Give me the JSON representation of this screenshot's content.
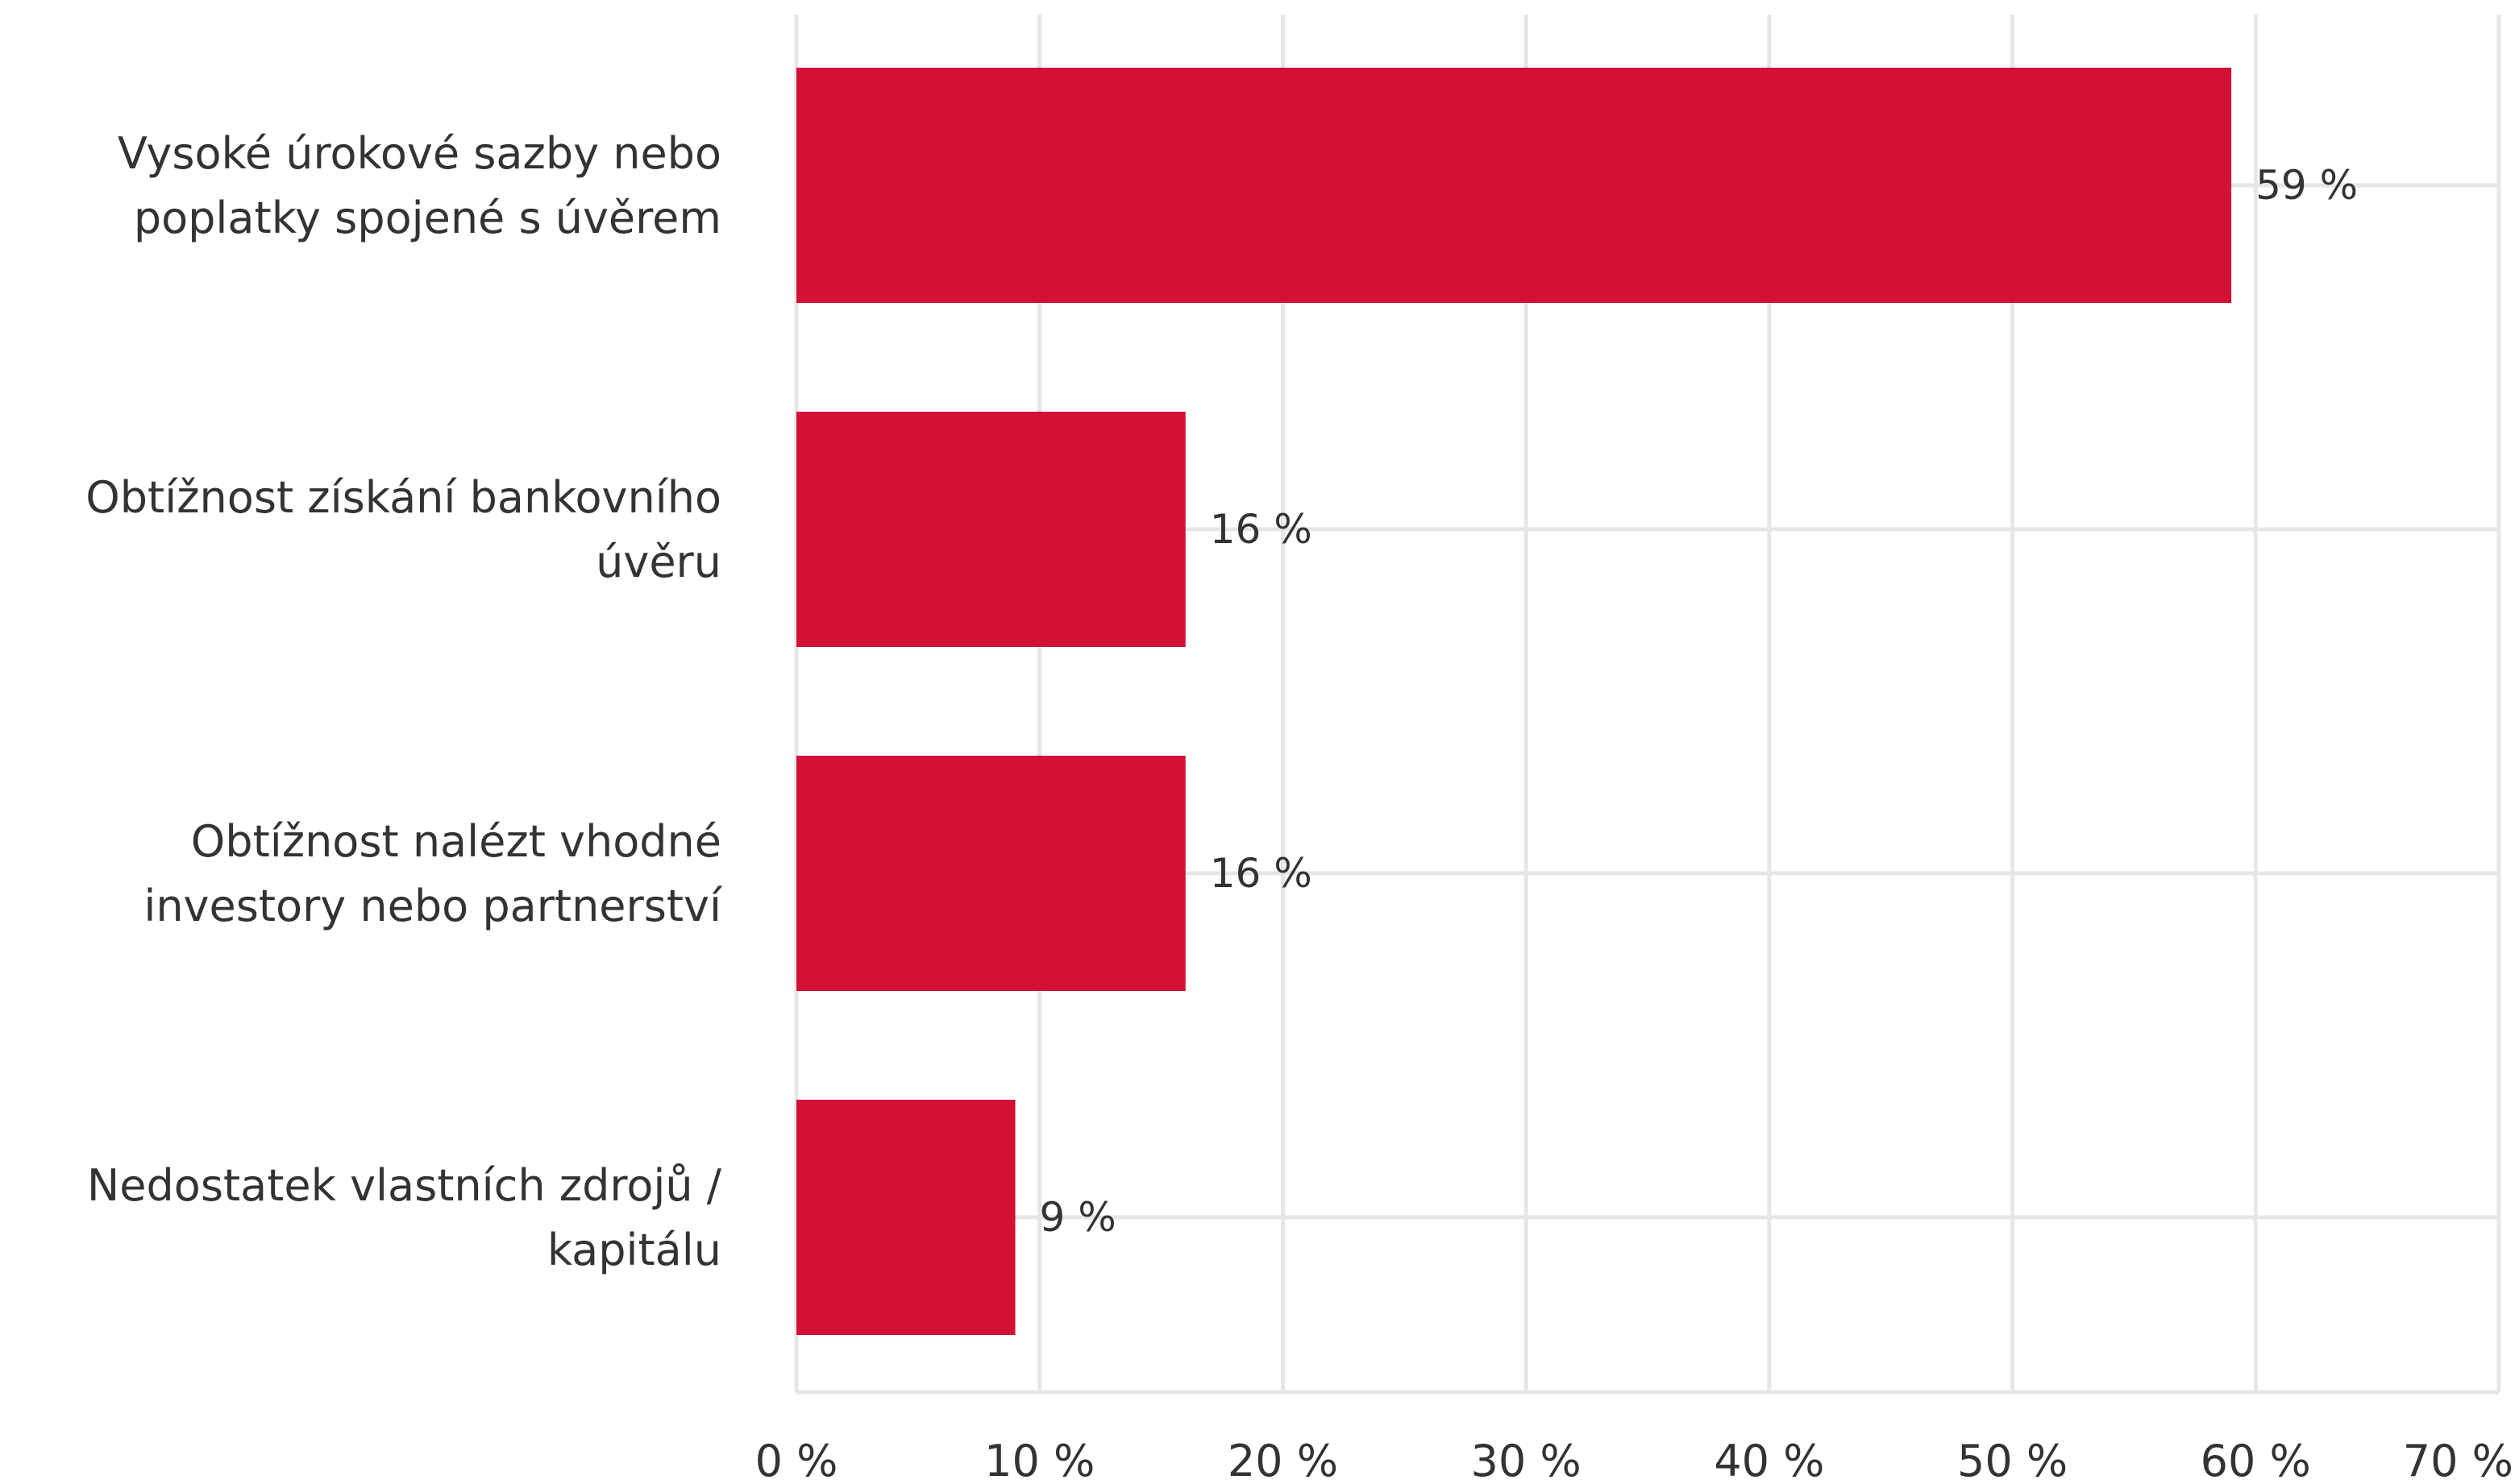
{
  "chart_data": {
    "type": "bar",
    "orientation": "horizontal",
    "categories": [
      [
        "Vysoké úrokové sazby nebo",
        "poplatky spojené s úvěrem"
      ],
      [
        "Obtížnost získání bankovního",
        "úvěru"
      ],
      [
        "Obtížnost nalézt vhodné",
        "investory nebo partnerství"
      ],
      [
        "Nedostatek vlastních zdrojů /",
        "kapitálu"
      ]
    ],
    "values": [
      59,
      16,
      16,
      9
    ],
    "data_labels": [
      "59 %",
      "16 %",
      "16 %",
      "9 %"
    ],
    "xlim": [
      0,
      70
    ],
    "x_ticks": [
      0,
      10,
      20,
      30,
      40,
      50,
      60,
      70
    ],
    "x_tick_labels": [
      "0 %",
      "10 %",
      "20 %",
      "30 %",
      "40 %",
      "50 %",
      "60 %",
      "70 %"
    ],
    "grid": true,
    "legend": "none",
    "colors": {
      "bar": "#d31134",
      "grid": "#e6e6e6",
      "text": "#333333"
    }
  }
}
